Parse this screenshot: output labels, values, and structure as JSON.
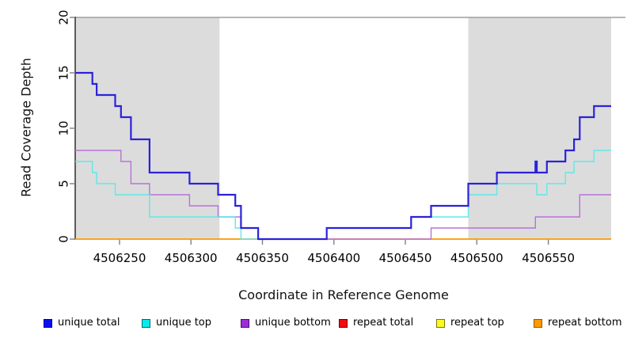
{
  "chart_data": {
    "type": "line",
    "subtype": "step",
    "title": "",
    "xlabel": "Coordinate in Reference Genome",
    "ylabel": "Read Coverage Depth",
    "xlim": [
      4506219,
      4506594
    ],
    "ylim": [
      0,
      20
    ],
    "x_ticks": [
      4506250,
      4506300,
      4506350,
      4506400,
      4506450,
      4506500,
      4506550
    ],
    "y_ticks": [
      0,
      5,
      10,
      15,
      20
    ],
    "grid": "off",
    "legend_position": "bottom",
    "band_color": "#dcdcdc",
    "background_bands": [
      {
        "x0": 4506219,
        "x1": 4506320
      },
      {
        "x0": 4506494,
        "x1": 4506594
      }
    ],
    "top_boundary_line": {
      "y": 20,
      "color": "#9e9e9e"
    },
    "axis_color": "#2f2f2f",
    "tick_color": "#7f7f7f",
    "draw_order": [
      3,
      4,
      5,
      2,
      1,
      0
    ],
    "series": [
      {
        "name": "unique total",
        "line_color": "#2b22d9",
        "line_width": 2.2,
        "steps": [
          [
            4506219,
            15
          ],
          [
            4506231,
            14
          ],
          [
            4506234,
            13
          ],
          [
            4506247,
            12
          ],
          [
            4506251,
            11
          ],
          [
            4506258,
            9
          ],
          [
            4506271,
            6
          ],
          [
            4506299,
            5
          ],
          [
            4506319,
            4
          ],
          [
            4506331,
            3
          ],
          [
            4506335,
            1
          ],
          [
            4506347,
            0
          ],
          [
            4506395,
            1
          ],
          [
            4506454,
            2
          ],
          [
            4506468,
            3
          ],
          [
            4506494,
            5
          ],
          [
            4506514,
            6
          ],
          [
            4506541,
            7
          ],
          [
            4506542,
            6
          ],
          [
            4506549,
            7
          ],
          [
            4506562,
            8
          ],
          [
            4506568,
            9
          ],
          [
            4506572,
            11
          ],
          [
            4506582,
            12
          ]
        ]
      },
      {
        "name": "unique top",
        "line_color": "#63e7e7",
        "line_width": 1.4,
        "steps": [
          [
            4506219,
            7
          ],
          [
            4506231,
            6
          ],
          [
            4506234,
            5
          ],
          [
            4506247,
            4
          ],
          [
            4506271,
            2
          ],
          [
            4506331,
            1
          ],
          [
            4506335,
            0
          ],
          [
            4506395,
            1
          ],
          [
            4506454,
            2
          ],
          [
            4506494,
            4
          ],
          [
            4506514,
            5
          ],
          [
            4506542,
            4
          ],
          [
            4506549,
            5
          ],
          [
            4506562,
            6
          ],
          [
            4506568,
            7
          ],
          [
            4506582,
            8
          ]
        ]
      },
      {
        "name": "unique bottom",
        "line_color": "#b672d9",
        "line_width": 1.4,
        "steps": [
          [
            4506219,
            8
          ],
          [
            4506251,
            7
          ],
          [
            4506258,
            5
          ],
          [
            4506271,
            4
          ],
          [
            4506299,
            3
          ],
          [
            4506319,
            2
          ],
          [
            4506335,
            1
          ],
          [
            4506347,
            0
          ],
          [
            4506468,
            1
          ],
          [
            4506541,
            2
          ],
          [
            4506572,
            4
          ]
        ]
      },
      {
        "name": "repeat total",
        "line_color": "#e03030",
        "line_width": 1.4,
        "steps": [
          [
            4506219,
            0
          ]
        ]
      },
      {
        "name": "repeat top",
        "line_color": "#f3ef2a",
        "line_width": 1.4,
        "steps": [
          [
            4506219,
            0
          ]
        ]
      },
      {
        "name": "repeat bottom",
        "line_color": "#ff9d00",
        "line_width": 1.4,
        "steps": [
          [
            4506219,
            0
          ]
        ]
      }
    ],
    "legend": [
      {
        "label": "unique total",
        "fill": "#0d0df2",
        "border": "#000080"
      },
      {
        "label": "unique top",
        "fill": "#00eded",
        "border": "#006868"
      },
      {
        "label": "unique bottom",
        "fill": "#9c2fd6",
        "border": "#470d6e"
      },
      {
        "label": "repeat total",
        "fill": "#f20d0d",
        "border": "#6e0000"
      },
      {
        "label": "repeat top",
        "fill": "#fbfb1e",
        "border": "#77770a"
      },
      {
        "label": "repeat bottom",
        "fill": "#ff9900",
        "border": "#8a5c00"
      }
    ]
  }
}
